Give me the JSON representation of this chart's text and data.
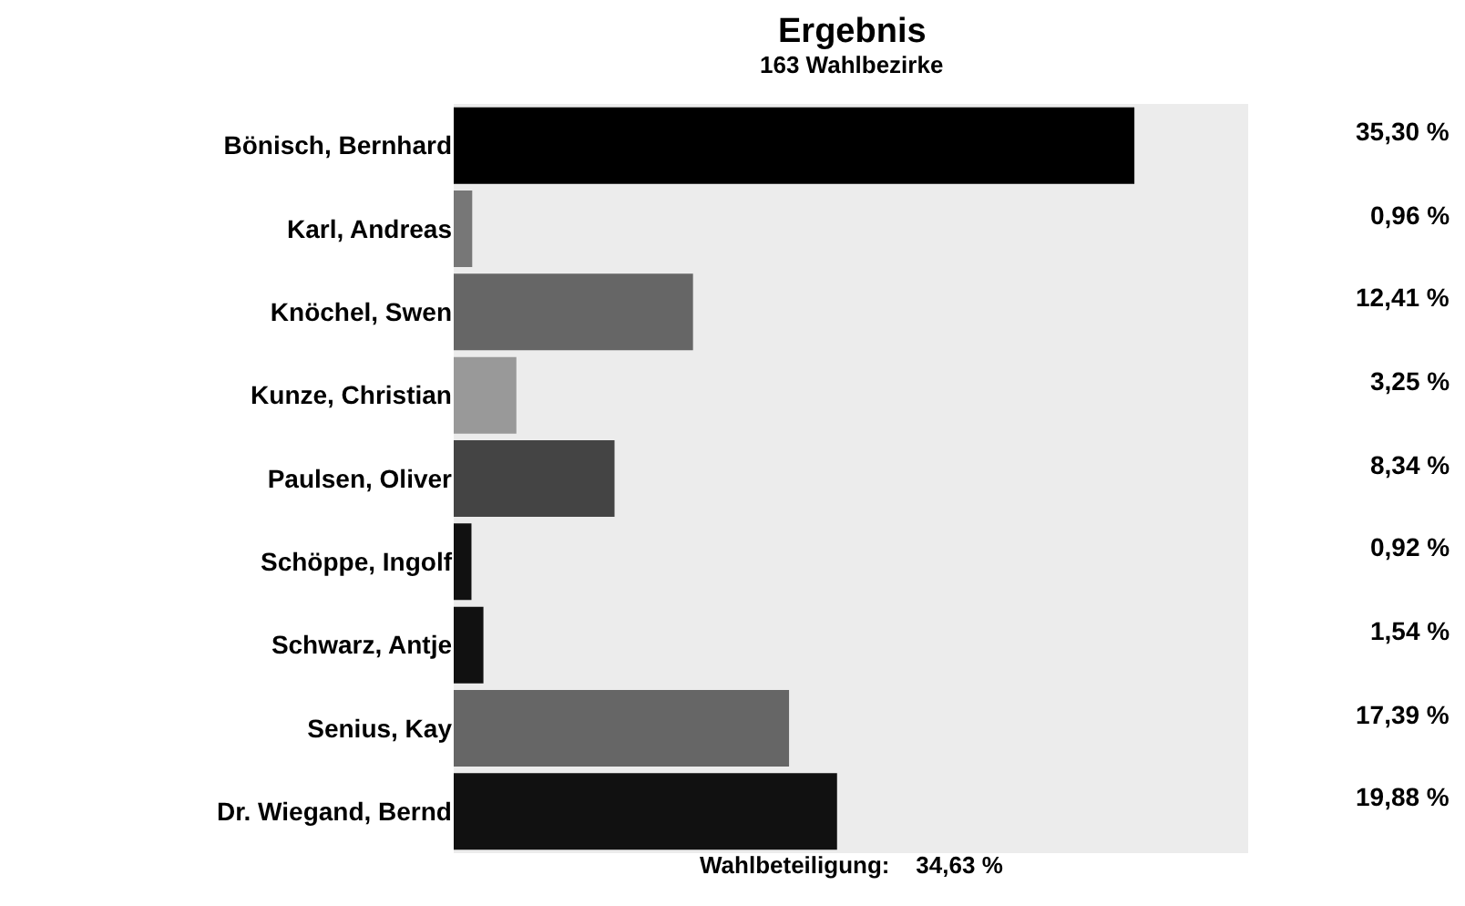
{
  "chart_data": {
    "type": "bar",
    "orientation": "horizontal",
    "title": "Ergebnis",
    "subtitle": "163 Wahlbezirke",
    "categories": [
      "Bönisch, Bernhard",
      "Karl, Andreas",
      "Knöchel, Swen",
      "Kunze, Christian",
      "Paulsen, Oliver",
      "Schöppe, Ingolf",
      "Schwarz, Antje",
      "Senius, Kay",
      "Dr. Wiegand, Bernd"
    ],
    "values": [
      35.3,
      0.96,
      12.41,
      3.25,
      8.34,
      0.92,
      1.54,
      17.39,
      19.88
    ],
    "value_labels": [
      "35,30 %",
      "0,96 %",
      "12,41 %",
      "3,25 %",
      "8,34 %",
      "0,92 %",
      "1,54 %",
      "17,39 %",
      "19,88 %"
    ],
    "colors": [
      "#000000",
      "#777777",
      "#666666",
      "#999999",
      "#444444",
      "#111111",
      "#111111",
      "#666666",
      "#111111"
    ],
    "xlim": [
      0,
      41.2
    ],
    "tick_labels": "y",
    "annotations": [
      "Wahlbeteiligung:    34,63 %"
    ]
  }
}
